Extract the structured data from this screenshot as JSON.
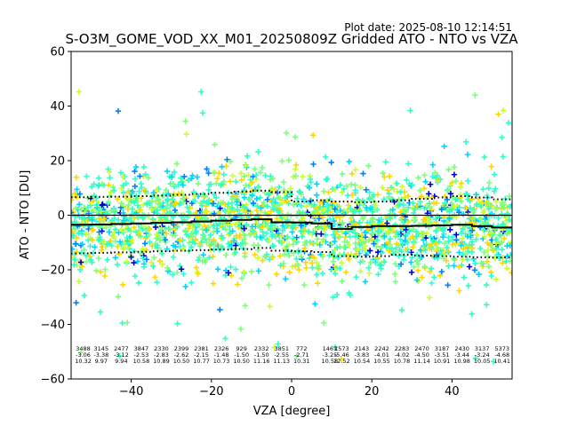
{
  "chart_data": {
    "type": "scatter",
    "plot_date": "Plot date: 2025-08-10 12:14:51",
    "title": "S-O3M_GOME_VOD_XX_M01_20250809Z Gridded ATO - NTO vs VZA",
    "xlabel": "VZA [degree]",
    "ylabel": "ATO - NTO [DU]",
    "xlim": [
      -55,
      55
    ],
    "ylim": [
      -60,
      60
    ],
    "xticks": [
      -40,
      -20,
      0,
      20,
      40
    ],
    "yticks": [
      -60,
      -40,
      -20,
      0,
      20,
      40,
      60
    ],
    "marker": "+",
    "colormap_colors": [
      "#0000cd",
      "#0080ff",
      "#00d4ff",
      "#2dffc8",
      "#7dff7a",
      "#c8ff2d",
      "#ffd700"
    ],
    "bins_vza": [
      -52.5,
      -47.5,
      -42.5,
      -37.5,
      -32.5,
      -27.5,
      -22.5,
      -17.5,
      -12.5,
      -7.5,
      -2.5,
      2.5,
      7.5,
      12.5,
      17.5,
      22.5,
      27.5,
      32.5,
      37.5,
      42.5,
      47.5,
      52.5
    ],
    "mean_line": [
      -3.5,
      -3.4,
      -3.2,
      -3.0,
      -2.8,
      -2.6,
      -2.3,
      -2.0,
      -1.7,
      -1.5,
      -2.6,
      -2.7,
      -3.0,
      -5.0,
      -4.3,
      -4.0,
      -4.0,
      -3.9,
      -3.7,
      -3.5,
      -4.0,
      -4.5
    ],
    "upper_line": [
      6.6,
      6.7,
      6.8,
      7.0,
      7.2,
      7.5,
      7.8,
      8.2,
      8.6,
      9.0,
      8.5,
      5.0,
      5.5,
      5.0,
      4.8,
      5.0,
      5.5,
      6.0,
      6.5,
      7.0,
      6.5,
      5.8
    ],
    "lower_line": [
      -14.0,
      -13.8,
      -13.6,
      -13.4,
      -13.2,
      -13.0,
      -12.8,
      -12.6,
      -12.4,
      -12.0,
      -13.0,
      -13.2,
      -13.5,
      -15.0,
      -15.2,
      -15.0,
      -14.5,
      -14.8,
      -15.0,
      -15.2,
      -15.4,
      -15.5
    ],
    "bin_stats": [
      {
        "vza": -52,
        "n": "3488",
        "mean": "-3.06",
        "sd": "10.32"
      },
      {
        "vza": -47.5,
        "n": "3145",
        "mean": "-3.38",
        "sd": "9.97"
      },
      {
        "vza": -42.5,
        "n": "2477",
        "mean": "-3.12",
        "sd": "9.94"
      },
      {
        "vza": -37.5,
        "n": "3847",
        "mean": "-2.53",
        "sd": "10.58"
      },
      {
        "vza": -32.5,
        "n": "2330",
        "mean": "-2.83",
        "sd": "10.89"
      },
      {
        "vza": -27.5,
        "n": "2399",
        "mean": "-2.62",
        "sd": "10.50"
      },
      {
        "vza": -22.5,
        "n": "2381",
        "mean": "-2.15",
        "sd": "10.77"
      },
      {
        "vza": -17.5,
        "n": "2326",
        "mean": "-1.48",
        "sd": "10.73"
      },
      {
        "vza": -12.5,
        "n": "929",
        "mean": "-1.50",
        "sd": "10.50"
      },
      {
        "vza": -7.5,
        "n": "2332",
        "mean": "-1.50",
        "sd": "11.16"
      },
      {
        "vza": -2.5,
        "n": "3851",
        "mean": "-2.55",
        "sd": "11.13"
      },
      {
        "vza": 2.5,
        "n": "772",
        "mean": "-2.71",
        "sd": "10.31"
      },
      {
        "vza": 9.5,
        "n": "1461",
        "mean": "-3.25",
        "sd": "10.58"
      },
      {
        "vza": 12.5,
        "n": "1573",
        "mean": "-5.46",
        "sd": "12.52"
      },
      {
        "vza": 17.5,
        "n": "2143",
        "mean": "-3.83",
        "sd": "10.54"
      },
      {
        "vza": 22.5,
        "n": "2242",
        "mean": "-4.01",
        "sd": "10.55"
      },
      {
        "vza": 27.5,
        "n": "2283",
        "mean": "-4.02",
        "sd": "10.78"
      },
      {
        "vza": 32.5,
        "n": "2470",
        "mean": "-4.50",
        "sd": "11.14"
      },
      {
        "vza": 37.5,
        "n": "3187",
        "mean": "-3.51",
        "sd": "10.91"
      },
      {
        "vza": 42.5,
        "n": "2430",
        "mean": "-3.44",
        "sd": "10.98"
      },
      {
        "vza": 47.5,
        "n": "3137",
        "mean": "-3.24",
        "sd": "10.05"
      },
      {
        "vza": 52.5,
        "n": "5373",
        "mean": "-4.68",
        "sd": "10.41"
      }
    ]
  }
}
